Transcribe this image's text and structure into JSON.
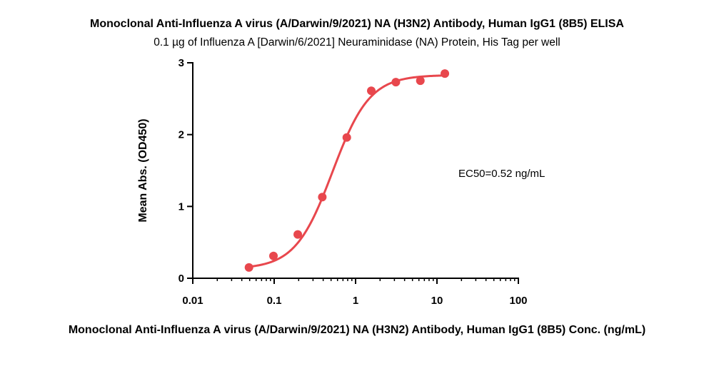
{
  "chart_data": {
    "type": "scatter",
    "title": "Monoclonal Anti-Influenza A virus (A/Darwin/9/2021) NA (H3N2) Antibody, Human IgG1 (8B5) ELISA",
    "subtitle": "0.1 µg of Influenza A [Darwin/6/2021] Neuraminidase (NA) Protein, His Tag per well",
    "xlabel": "Monoclonal Anti-Influenza A virus (A/Darwin/9/2021) NA (H3N2) Antibody, Human IgG1 (8B5) Conc. (ng/mL)",
    "ylabel": "Mean Abs. (OD450)",
    "x_scale": "log",
    "xlim": [
      0.01,
      100
    ],
    "ylim": [
      0,
      3
    ],
    "x_ticks": [
      "0.01",
      "0.1",
      "1",
      "10",
      "100"
    ],
    "y_ticks": [
      "0",
      "1",
      "2",
      "3"
    ],
    "grid": false,
    "series": [
      {
        "x": [
          0.049,
          0.098,
          0.195,
          0.39,
          0.78,
          1.56,
          3.125,
          6.25,
          12.5
        ],
        "y": [
          0.15,
          0.31,
          0.61,
          1.13,
          1.96,
          2.61,
          2.73,
          2.75,
          2.85
        ],
        "color": "#e8474d"
      }
    ],
    "fit_curve": {
      "type": "4PL",
      "bottom": 0.13,
      "top": 2.83,
      "ec50": 0.52,
      "hill": 1.9,
      "x_range": [
        0.049,
        12.5
      ],
      "color": "#e8474d"
    },
    "annotations": [
      "EC50=0.52 ng/mL"
    ]
  }
}
